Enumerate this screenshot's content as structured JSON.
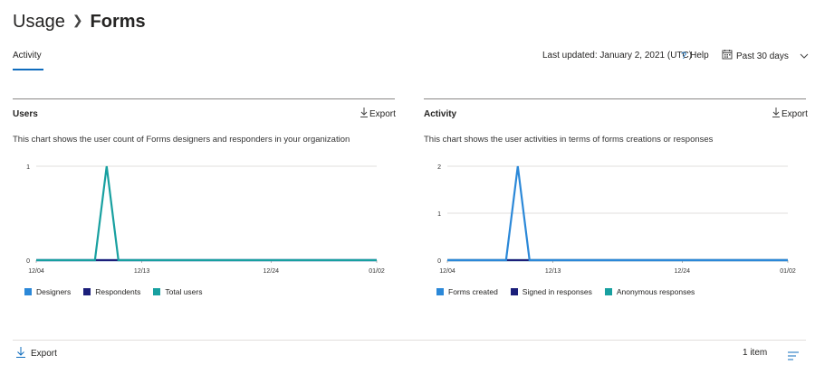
{
  "breadcrumb": {
    "parent": "Usage",
    "current": "Forms"
  },
  "tabs": [
    {
      "label": "Activity"
    }
  ],
  "header": {
    "last_updated": "Last updated: January 2, 2021 (UTC)",
    "help": "Help",
    "range": "Past 30 days"
  },
  "panels": [
    {
      "title": "Users",
      "export": "Export",
      "description": "This chart shows the user count of Forms designers and responders in your organization",
      "legend": [
        {
          "label": "Designers",
          "color": "#2b88d8"
        },
        {
          "label": "Respondents",
          "color": "#1b1f7a"
        },
        {
          "label": "Total users",
          "color": "#18a0a0"
        }
      ]
    },
    {
      "title": "Activity",
      "export": "Export",
      "description": "This chart shows the user activities in terms of forms creations or responses",
      "legend": [
        {
          "label": "Forms created",
          "color": "#2b88d8"
        },
        {
          "label": "Signed in responses",
          "color": "#1b1f7a"
        },
        {
          "label": "Anonymous responses",
          "color": "#18a0a0"
        }
      ]
    }
  ],
  "chart_data": [
    {
      "type": "line",
      "x_ticks": [
        "12/04",
        "12/13",
        "12/24",
        "01/02"
      ],
      "y_ticks": [
        "0",
        "1"
      ],
      "ylim": [
        0,
        1
      ],
      "days": [
        "12/04",
        "12/05",
        "12/06",
        "12/07",
        "12/08",
        "12/09",
        "12/10",
        "12/11",
        "12/12",
        "12/13",
        "12/14",
        "12/15",
        "12/16",
        "12/17",
        "12/18",
        "12/19",
        "12/20",
        "12/21",
        "12/22",
        "12/23",
        "12/24",
        "12/25",
        "12/26",
        "12/27",
        "12/28",
        "12/29",
        "12/30",
        "12/31",
        "01/01",
        "01/02"
      ],
      "series": [
        {
          "name": "Designers",
          "color": "#2b88d8",
          "values": [
            0,
            0,
            0,
            0,
            0,
            0,
            0,
            0,
            0,
            0,
            0,
            0,
            0,
            0,
            0,
            0,
            0,
            0,
            0,
            0,
            0,
            0,
            0,
            0,
            0,
            0,
            0,
            0,
            0,
            0
          ]
        },
        {
          "name": "Respondents",
          "color": "#1b1f7a",
          "values": [
            0,
            0,
            0,
            0,
            0,
            0,
            0,
            0,
            0,
            0,
            0,
            0,
            0,
            0,
            0,
            0,
            0,
            0,
            0,
            0,
            0,
            0,
            0,
            0,
            0,
            0,
            0,
            0,
            0,
            0
          ]
        },
        {
          "name": "Total users",
          "color": "#18a0a0",
          "values": [
            0,
            0,
            0,
            0,
            0,
            0,
            1,
            0,
            0,
            0,
            0,
            0,
            0,
            0,
            0,
            0,
            0,
            0,
            0,
            0,
            0,
            0,
            0,
            0,
            0,
            0,
            0,
            0,
            0,
            0
          ]
        }
      ]
    },
    {
      "type": "line",
      "x_ticks": [
        "12/04",
        "12/13",
        "12/24",
        "01/02"
      ],
      "y_ticks": [
        "0",
        "1",
        "2"
      ],
      "ylim": [
        0,
        2
      ],
      "days": [
        "12/04",
        "12/05",
        "12/06",
        "12/07",
        "12/08",
        "12/09",
        "12/10",
        "12/11",
        "12/12",
        "12/13",
        "12/14",
        "12/15",
        "12/16",
        "12/17",
        "12/18",
        "12/19",
        "12/20",
        "12/21",
        "12/22",
        "12/23",
        "12/24",
        "12/25",
        "12/26",
        "12/27",
        "12/28",
        "12/29",
        "12/30",
        "12/31",
        "01/01",
        "01/02"
      ],
      "series": [
        {
          "name": "Anonymous responses",
          "color": "#18a0a0",
          "values": [
            0,
            0,
            0,
            0,
            0,
            0,
            0,
            0,
            0,
            0,
            0,
            0,
            0,
            0,
            0,
            0,
            0,
            0,
            0,
            0,
            0,
            0,
            0,
            0,
            0,
            0,
            0,
            0,
            0,
            0
          ]
        },
        {
          "name": "Signed in responses",
          "color": "#1b1f7a",
          "values": [
            0,
            0,
            0,
            0,
            0,
            0,
            0,
            0,
            0,
            0,
            0,
            0,
            0,
            0,
            0,
            0,
            0,
            0,
            0,
            0,
            0,
            0,
            0,
            0,
            0,
            0,
            0,
            0,
            0,
            0
          ]
        },
        {
          "name": "Forms created",
          "color": "#2b88d8",
          "values": [
            0,
            0,
            0,
            0,
            0,
            0,
            2,
            0,
            0,
            0,
            0,
            0,
            0,
            0,
            0,
            0,
            0,
            0,
            0,
            0,
            0,
            0,
            0,
            0,
            0,
            0,
            0,
            0,
            0,
            0
          ]
        }
      ]
    }
  ],
  "footer": {
    "export": "Export",
    "count": "1 item"
  },
  "icons": {
    "chevron": "chevron-right-icon",
    "help": "question-icon",
    "calendar": "calendar-icon",
    "export": "download-icon",
    "list": "list-icon"
  }
}
